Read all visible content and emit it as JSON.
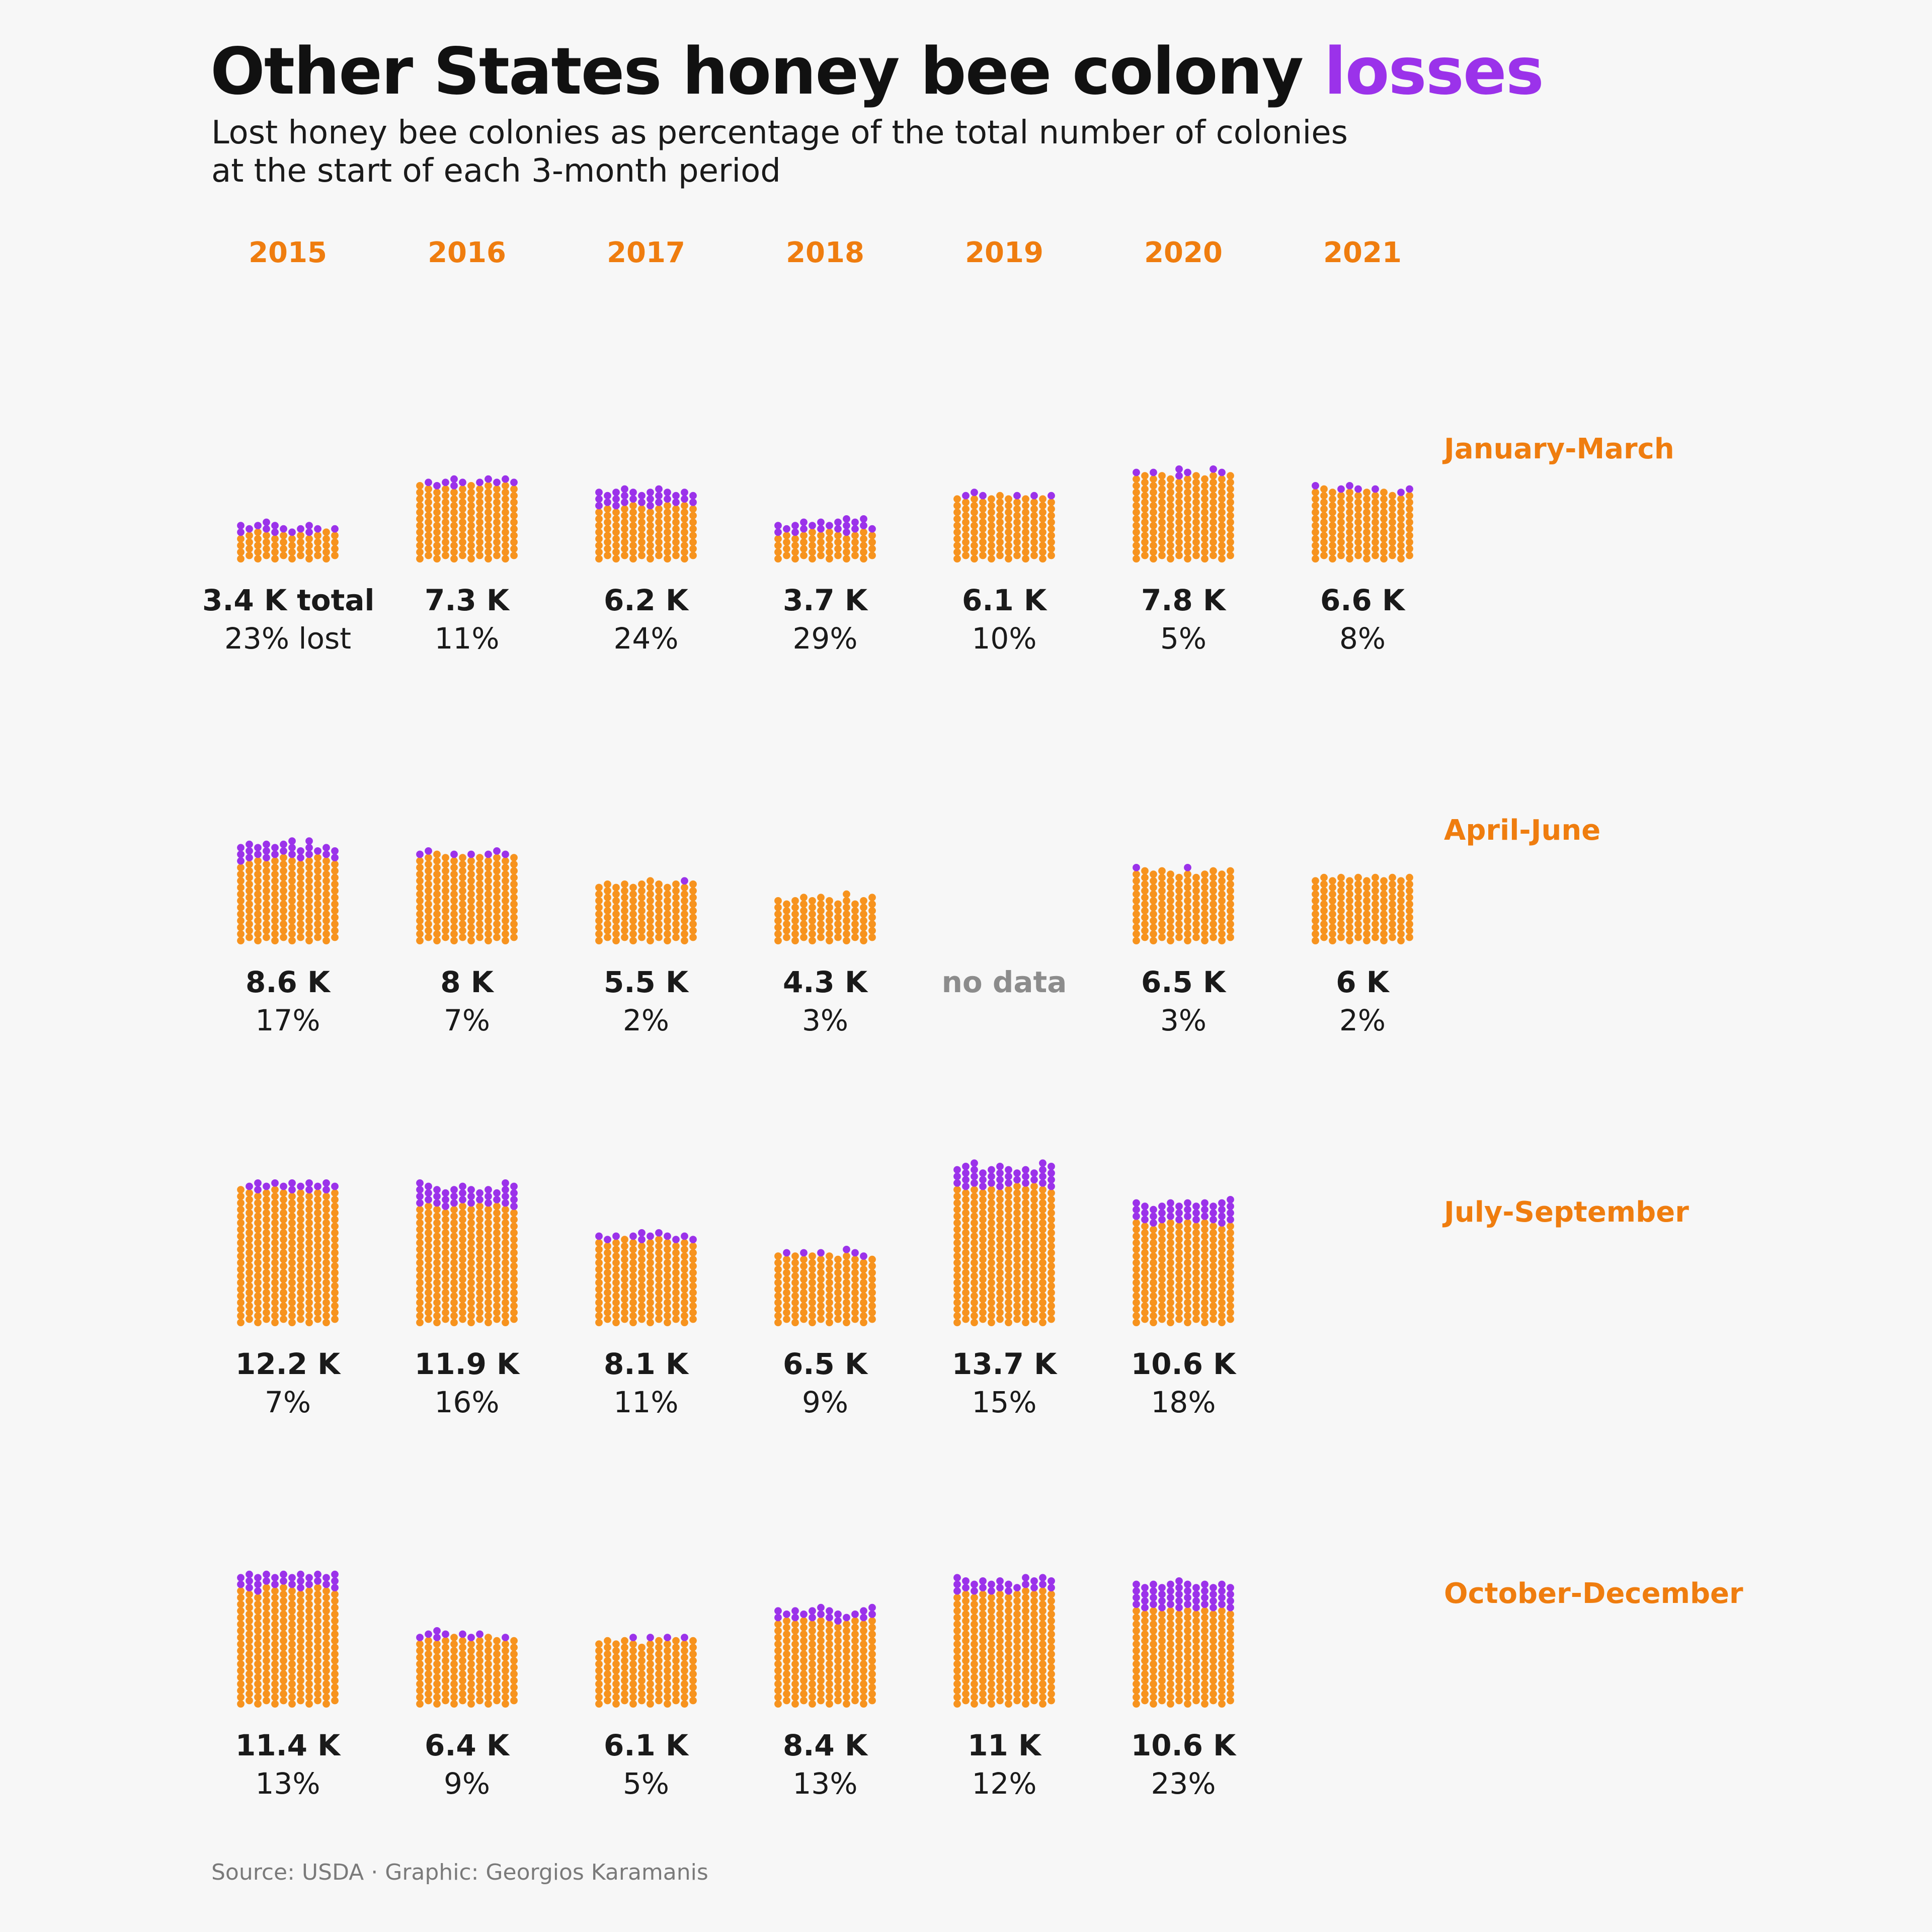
{
  "header": {
    "title_main": "Other States honey bee colony ",
    "title_accent": "losses",
    "subtitle_line1": "Lost honey bee colonies as percentage of the total number of colonies",
    "subtitle_line2": "at the start of each 3-month period"
  },
  "footer": {
    "source": "Source: USDA · Graphic: Georgios Karamanis"
  },
  "colors": {
    "healthy": "#f7931e",
    "lost": "#9b32ea",
    "accent_text": "#ef7d0f",
    "no_data": "#8c8c8c",
    "background": "#f7f7f7"
  },
  "chart_data": {
    "type": "honeycomb-bar",
    "years": [
      "2015",
      "2016",
      "2017",
      "2018",
      "2019",
      "2020",
      "2021"
    ],
    "periods": [
      "January-March",
      "April-June",
      "July-September",
      "October-December"
    ],
    "no_data_label": "no data",
    "cells": [
      [
        {
          "total": 3.4,
          "total_label": "3.4 K total",
          "lost_pct": 23,
          "pct_label": "23% lost"
        },
        {
          "total": 7.3,
          "total_label": "7.3 K",
          "lost_pct": 11,
          "pct_label": "11%"
        },
        {
          "total": 6.2,
          "total_label": "6.2 K",
          "lost_pct": 24,
          "pct_label": "24%"
        },
        {
          "total": 3.7,
          "total_label": "3.7 K",
          "lost_pct": 29,
          "pct_label": "29%"
        },
        {
          "total": 6.1,
          "total_label": "6.1 K",
          "lost_pct": 10,
          "pct_label": "10%"
        },
        {
          "total": 7.8,
          "total_label": "7.8 K",
          "lost_pct": 5,
          "pct_label": "5%"
        },
        {
          "total": 6.6,
          "total_label": "6.6 K",
          "lost_pct": 8,
          "pct_label": "8%"
        }
      ],
      [
        {
          "total": 8.6,
          "total_label": "8.6 K",
          "lost_pct": 17,
          "pct_label": "17%"
        },
        {
          "total": 8.0,
          "total_label": "8 K",
          "lost_pct": 7,
          "pct_label": "7%"
        },
        {
          "total": 5.5,
          "total_label": "5.5 K",
          "lost_pct": 2,
          "pct_label": "2%"
        },
        {
          "total": 4.3,
          "total_label": "4.3 K",
          "lost_pct": 3,
          "pct_label": "3%"
        },
        null,
        {
          "total": 6.5,
          "total_label": "6.5 K",
          "lost_pct": 3,
          "pct_label": "3%"
        },
        {
          "total": 6.0,
          "total_label": "6 K",
          "lost_pct": 2,
          "pct_label": "2%"
        }
      ],
      [
        {
          "total": 12.2,
          "total_label": "12.2 K",
          "lost_pct": 7,
          "pct_label": "7%"
        },
        {
          "total": 11.9,
          "total_label": "11.9 K",
          "lost_pct": 16,
          "pct_label": "16%"
        },
        {
          "total": 8.1,
          "total_label": "8.1 K",
          "lost_pct": 11,
          "pct_label": "11%"
        },
        {
          "total": 6.5,
          "total_label": "6.5 K",
          "lost_pct": 9,
          "pct_label": "9%"
        },
        {
          "total": 13.7,
          "total_label": "13.7 K",
          "lost_pct": 15,
          "pct_label": "15%"
        },
        {
          "total": 10.6,
          "total_label": "10.6 K",
          "lost_pct": 18,
          "pct_label": "18%"
        },
        null
      ],
      [
        {
          "total": 11.4,
          "total_label": "11.4 K",
          "lost_pct": 13,
          "pct_label": "13%"
        },
        {
          "total": 6.4,
          "total_label": "6.4 K",
          "lost_pct": 9,
          "pct_label": "9%"
        },
        {
          "total": 6.1,
          "total_label": "6.1 K",
          "lost_pct": 5,
          "pct_label": "5%"
        },
        {
          "total": 8.4,
          "total_label": "8.4 K",
          "lost_pct": 13,
          "pct_label": "13%"
        },
        {
          "total": 11.0,
          "total_label": "11 K",
          "lost_pct": 12,
          "pct_label": "12%"
        },
        {
          "total": 10.6,
          "total_label": "10.6 K",
          "lost_pct": 23,
          "pct_label": "23%"
        },
        null
      ]
    ]
  }
}
